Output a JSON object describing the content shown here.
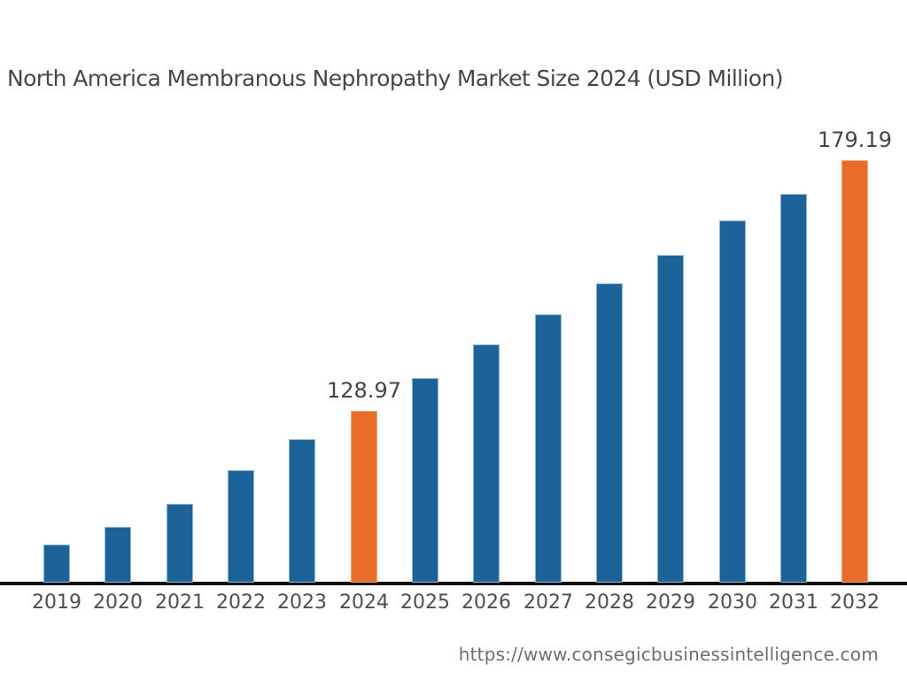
{
  "title": {
    "text": "North America Membranous Nephropathy Market Size 2024 (USD Million)"
  },
  "footer": {
    "url": "https://www.consegicbusinessintelligence.com"
  },
  "colors": {
    "bar_default": "#1c6399",
    "bar_highlight": "#e66c28",
    "axis_line": "#0a0a0a",
    "title_text": "#474747",
    "value_label_text": "#454545",
    "tick_text": "#4f4f4f",
    "url_text": "#6e6e6e",
    "background": "#ffffff"
  },
  "chart_data": {
    "type": "bar",
    "title": "North America Membranous Nephropathy Market Size 2024 (USD Million)",
    "unit": "USD Million",
    "categories": [
      "2019",
      "2020",
      "2021",
      "2022",
      "2023",
      "2024",
      "2025",
      "2026",
      "2027",
      "2028",
      "2029",
      "2030",
      "2031",
      "2032"
    ],
    "values": [
      102.2,
      105.7,
      110.3,
      117.1,
      123.3,
      128.97,
      135.5,
      142.3,
      148.3,
      154.5,
      160.2,
      167.1,
      172.4,
      179.19
    ],
    "values_note": "Only 2024 and 2032 are labeled on the chart; other values estimated from bar heights",
    "highlighted_categories": [
      "2024",
      "2032"
    ],
    "data_labels": [
      {
        "category": "2024",
        "text": "128.97"
      },
      {
        "category": "2032",
        "text": "179.19"
      }
    ],
    "xlabel": "",
    "ylabel": "",
    "value_axis": {
      "visible": false,
      "baseline_value": 94.5,
      "top_value": 185
    },
    "grid": false,
    "legend": false
  }
}
